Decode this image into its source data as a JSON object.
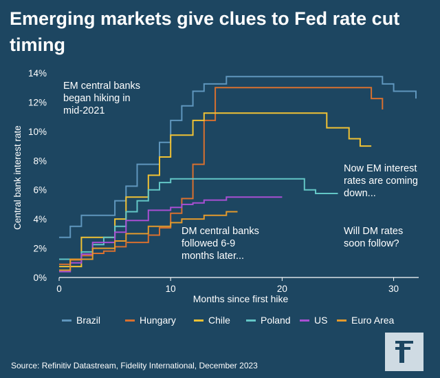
{
  "title": "Emerging markets give clues to Fed rate cut timing",
  "source": "Source: Refinitiv Datastream, Fidelity International, December 2023",
  "annotations": {
    "em_hiking": "EM central banks\nbegan hiking in\nmid-2021",
    "em_coming_down": "Now EM interest\nrates are coming\ndown...",
    "dm_followed": "DM central banks\nfollowed 6-9\nmonths later...",
    "dm_follow_q": "Will DM rates\nsoon follow?"
  },
  "chart_data": {
    "type": "line",
    "title": "Emerging markets give clues to Fed rate cut timing",
    "xlabel": "Months since first hike",
    "ylabel": "Central bank interest rate",
    "xlim": [
      0,
      32
    ],
    "ylim": [
      0,
      14
    ],
    "xticks": [
      0,
      10,
      20,
      30
    ],
    "xtick_labels": [
      "0",
      "10",
      "20",
      "30"
    ],
    "yticks": [
      0,
      2,
      4,
      6,
      8,
      10,
      12,
      14
    ],
    "ytick_labels": [
      "0%",
      "2%",
      "4%",
      "6%",
      "8%",
      "10%",
      "12%",
      "14%"
    ],
    "grid": false,
    "legend_position": "bottom",
    "series": [
      {
        "name": "Brazil",
        "color": "#5f96bd",
        "x": [
          0,
          1,
          2,
          3,
          4,
          5,
          6,
          7,
          8,
          9,
          10,
          11,
          12,
          13,
          14,
          15,
          16,
          17,
          18,
          19,
          20,
          21,
          22,
          23,
          24,
          25,
          26,
          27,
          28,
          29,
          30,
          31,
          32
        ],
        "y": [
          2.75,
          3.5,
          4.25,
          4.25,
          4.25,
          5.25,
          6.25,
          7.75,
          7.75,
          9.25,
          10.75,
          11.75,
          12.75,
          13.25,
          13.25,
          13.75,
          13.75,
          13.75,
          13.75,
          13.75,
          13.75,
          13.75,
          13.75,
          13.75,
          13.75,
          13.75,
          13.75,
          13.75,
          13.75,
          13.25,
          12.75,
          12.75,
          12.25
        ]
      },
      {
        "name": "Hungary",
        "color": "#d8702f",
        "x": [
          0,
          1,
          2,
          3,
          4,
          5,
          6,
          7,
          8,
          9,
          10,
          11,
          12,
          13,
          14,
          15,
          16,
          17,
          18,
          19,
          20,
          21,
          22,
          23,
          24,
          25,
          26,
          27,
          28,
          29
        ],
        "y": [
          0.9,
          1.2,
          1.5,
          1.65,
          1.8,
          2.1,
          2.4,
          2.4,
          2.9,
          3.4,
          4.4,
          5.4,
          7.75,
          10.75,
          13.0,
          13.0,
          13.0,
          13.0,
          13.0,
          13.0,
          13.0,
          13.0,
          13.0,
          13.0,
          13.0,
          13.0,
          13.0,
          13.0,
          12.25,
          11.5
        ]
      },
      {
        "name": "Chile",
        "color": "#f1c234",
        "x": [
          0,
          1,
          2,
          3,
          4,
          5,
          6,
          7,
          8,
          9,
          10,
          11,
          12,
          13,
          14,
          15,
          16,
          17,
          18,
          19,
          20,
          21,
          22,
          23,
          24,
          25,
          26,
          27,
          28
        ],
        "y": [
          0.75,
          0.75,
          2.75,
          2.75,
          2.75,
          4.0,
          5.5,
          5.5,
          7.0,
          8.25,
          9.75,
          9.75,
          10.75,
          11.25,
          11.25,
          11.25,
          11.25,
          11.25,
          11.25,
          11.25,
          11.25,
          11.25,
          11.25,
          11.25,
          10.25,
          10.25,
          9.5,
          9.0,
          9.0
        ]
      },
      {
        "name": "Poland",
        "color": "#63c6c6",
        "x": [
          0,
          1,
          2,
          3,
          4,
          5,
          6,
          7,
          8,
          9,
          10,
          11,
          12,
          13,
          14,
          15,
          16,
          17,
          18,
          19,
          20,
          21,
          22,
          23,
          24,
          25
        ],
        "y": [
          1.25,
          1.25,
          1.75,
          2.25,
          2.75,
          3.5,
          4.5,
          5.25,
          6.0,
          6.5,
          6.75,
          6.75,
          6.75,
          6.75,
          6.75,
          6.75,
          6.75,
          6.75,
          6.75,
          6.75,
          6.75,
          6.75,
          6.0,
          5.75,
          5.75,
          5.75
        ]
      },
      {
        "name": "US",
        "color": "#a94fd3",
        "x": [
          0,
          1,
          2,
          3,
          4,
          5,
          6,
          7,
          8,
          9,
          10,
          11,
          12,
          13,
          14,
          15,
          16,
          17,
          18,
          19,
          20
        ],
        "y": [
          0.4,
          1.0,
          1.6,
          2.4,
          2.4,
          3.1,
          3.9,
          3.9,
          4.6,
          4.6,
          4.8,
          5.0,
          5.1,
          5.3,
          5.3,
          5.5,
          5.5,
          5.5,
          5.5,
          5.5,
          5.5
        ]
      },
      {
        "name": "Euro Area",
        "color": "#e39a2c",
        "x": [
          0,
          1,
          2,
          3,
          4,
          5,
          6,
          7,
          8,
          9,
          10,
          11,
          12,
          13,
          14,
          15,
          16
        ],
        "y": [
          0.5,
          1.25,
          1.25,
          2.0,
          2.0,
          2.5,
          3.0,
          3.0,
          3.5,
          3.5,
          3.75,
          4.0,
          4.0,
          4.25,
          4.25,
          4.5,
          4.5
        ]
      }
    ]
  }
}
